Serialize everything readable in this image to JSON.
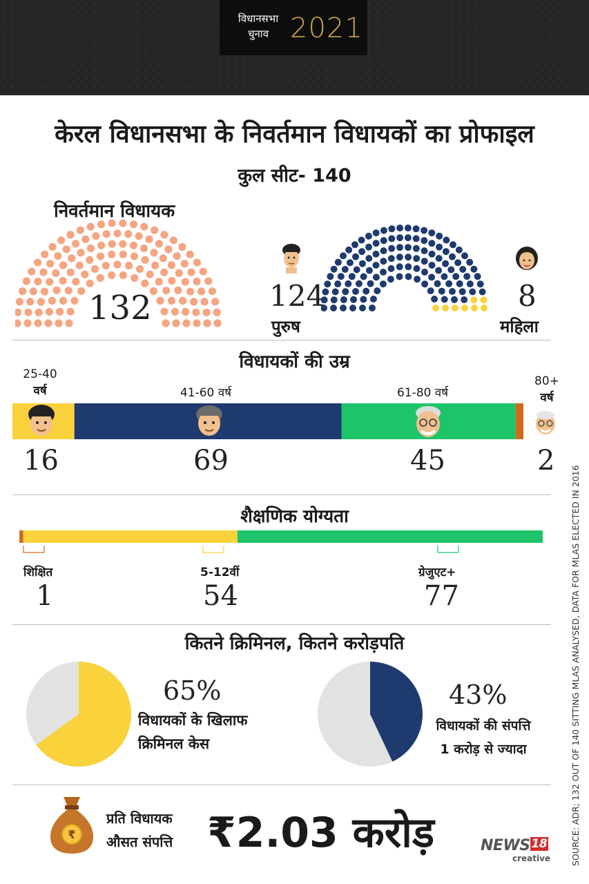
{
  "header": {
    "badge_small": "विधानसभा चुनाव",
    "badge_year": "2021"
  },
  "title": "केरल विधानसभा के निवर्तमान विधायकों का प्रोफाइल",
  "subtitle": "कुल सीट- 140",
  "colors": {
    "peach": "#f4a582",
    "navy": "#1f3a6e",
    "yellow": "#f9d23c",
    "green": "#1ec46a",
    "orange": "#d2691e",
    "grey": "#e2e2e2"
  },
  "chart_data": [
    {
      "type": "pie",
      "title": "निवर्तमान विधायक",
      "values": [
        132
      ],
      "labels": [
        ""
      ],
      "display_value": "132"
    },
    {
      "type": "pie",
      "title": "",
      "categories": [
        "पुरुष",
        "महिला"
      ],
      "values": [
        124,
        8
      ]
    },
    {
      "type": "bar",
      "title": "विधायकों की उम्र",
      "categories": [
        "25-40 वर्ष",
        "41-60 वर्ष",
        "61-80 वर्ष",
        "80+ वर्ष"
      ],
      "values": [
        16,
        69,
        45,
        2
      ]
    },
    {
      "type": "bar",
      "title": "शैक्षणिक योग्यता",
      "categories": [
        "शिक्षित",
        "5-12वीं",
        "ग्रेजुएट+"
      ],
      "values": [
        1,
        54,
        77
      ]
    },
    {
      "type": "pie",
      "title": "कितने क्रिमिनल, कितने करोड़पति",
      "values": [
        65,
        35
      ],
      "label": "65%",
      "caption_1": "विधायकों के खिलाफ",
      "caption_2": "क्रिमिनल केस"
    },
    {
      "type": "pie",
      "title": "",
      "values": [
        43,
        57
      ],
      "label": "43%",
      "caption_1": "विधायकों की संपत्ति",
      "caption_2": "1 करोड़ से ज्यादा"
    }
  ],
  "seats": {
    "title": "निवर्तमान विधायक",
    "total": "132",
    "male_count": "124",
    "male_label": "पुरुष",
    "female_count": "8",
    "female_label": "महिला"
  },
  "age": {
    "title": "विधायकों की उम्र",
    "groups": [
      {
        "label": "25-40",
        "unit": "वर्ष",
        "value": "16"
      },
      {
        "label": "41-60 वर्ष",
        "value": "69"
      },
      {
        "label": "61-80 वर्ष",
        "value": "45"
      },
      {
        "label": "80+",
        "unit": "वर्ष",
        "value": "2"
      }
    ]
  },
  "education": {
    "title": "शैक्षणिक योग्यता",
    "groups": [
      {
        "label": "शिक्षित",
        "value": "1"
      },
      {
        "label": "5-12वीं",
        "value": "54"
      },
      {
        "label": "ग्रेजुएट+",
        "value": "77"
      }
    ]
  },
  "crime": {
    "title": "कितने क्रिमिनल, कितने करोड़पति"
  },
  "assets": {
    "label_line1": "प्रति विधायक",
    "label_line2": "औसत संपत्ति",
    "value": "₹2.03 करोड़"
  },
  "brand": {
    "name": "NEWS",
    "num": "18",
    "sub": "creative"
  },
  "source": "SOURCE: ADR; 132 OUT OF 140 SITTING MLAS ANALYSED, DATA FOR MLAS ELECTED IN 2016"
}
